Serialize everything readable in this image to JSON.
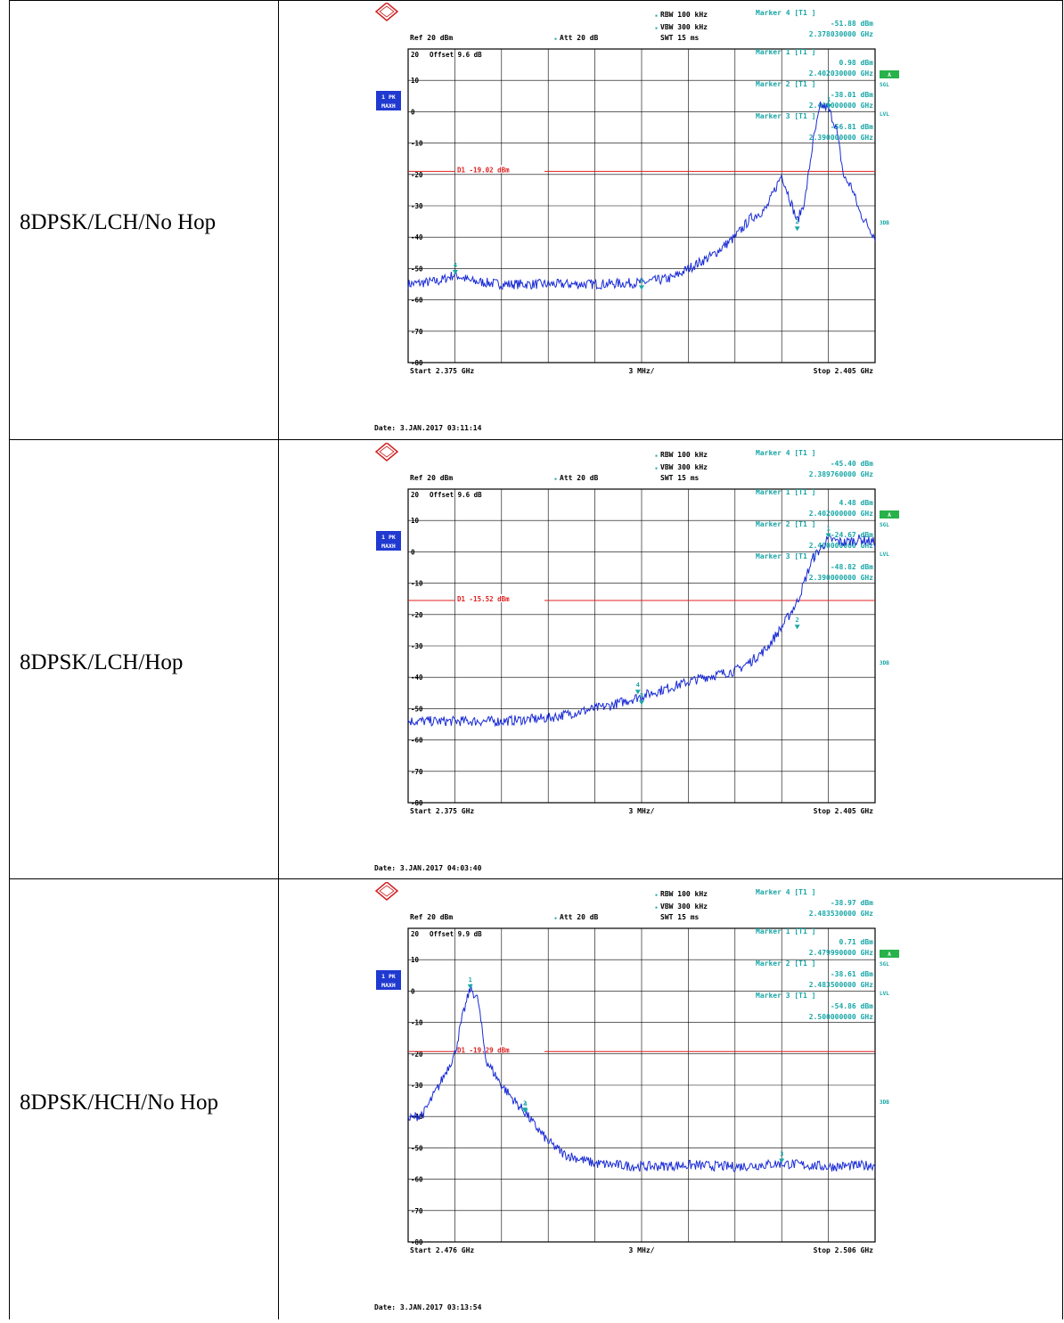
{
  "plots": [
    {
      "label": "8DPSK/LCH/No Hop",
      "rbw": "RBW 100 kHz",
      "vbw": "VBW 300 kHz",
      "swt": "SWT 15 ms",
      "ref": "Ref  20 dBm",
      "att": "Att  20 dB",
      "offset": "Offset  9.6 dB",
      "trace_box": "1 PK",
      "trace_mode": "MAXH",
      "d1": "D1 -19.02 dBm",
      "d1_value": -19.02,
      "start": "Start  2.375 GHz",
      "span": "3 MHz/",
      "stop": "Stop  2.405 GHz",
      "date": "Date: 3.JAN.2017  03:11:14",
      "marker_blocks": [
        {
          "title": "Marker 4 [T1 ]",
          "level": "-51.88 dBm",
          "freq": "2.378030000 GHz"
        },
        {
          "title": "Marker 1 [T1 ]",
          "level": "0.98 dBm",
          "freq": "2.402030000 GHz"
        },
        {
          "title": "Marker 2 [T1 ]",
          "level": "-38.01 dBm",
          "freq": "2.400000000 GHz"
        },
        {
          "title": "Marker 3 [T1 ]",
          "level": "-56.81 dBm",
          "freq": "2.390000000 GHz"
        }
      ]
    },
    {
      "label": "8DPSK/LCH/Hop",
      "rbw": "RBW 100 kHz",
      "vbw": "VBW 300 kHz",
      "swt": "SWT 15 ms",
      "ref": "Ref  20 dBm",
      "att": "Att  20 dB",
      "offset": "Offset  9.6 dB",
      "trace_box": "1 PK",
      "trace_mode": "MAXH",
      "d1": "D1 -15.52 dBm",
      "d1_value": -15.52,
      "start": "Start  2.375 GHz",
      "span": "3 MHz/",
      "stop": "Stop  2.405 GHz",
      "date": "Date: 3.JAN.2017  04:03:40",
      "marker_blocks": [
        {
          "title": "Marker 4 [T1 ]",
          "level": "-45.40 dBm",
          "freq": "2.389760000 GHz"
        },
        {
          "title": "Marker 1 [T1 ]",
          "level": "4.48 dBm",
          "freq": "2.402000000 GHz"
        },
        {
          "title": "Marker 2 [T1 ]",
          "level": "-24.67 dBm",
          "freq": "2.400000000 GHz"
        },
        {
          "title": "Marker 3 [T1 ]",
          "level": "-48.82 dBm",
          "freq": "2.390000000 GHz"
        }
      ]
    },
    {
      "label": "8DPSK/HCH/No Hop",
      "rbw": "RBW 100 kHz",
      "vbw": "VBW 300 kHz",
      "swt": "SWT 15 ms",
      "ref": "Ref  20 dBm",
      "att": "Att  20 dB",
      "offset": "Offset  9.9 dB",
      "trace_box": "1 PK",
      "trace_mode": "MAXH",
      "d1": "D1 -19.29 dBm",
      "d1_value": -19.29,
      "start": "Start  2.476 GHz",
      "span": "3 MHz/",
      "stop": "Stop  2.506 GHz",
      "date": "Date: 3.JAN.2017  03:13:54",
      "marker_blocks": [
        {
          "title": "Marker 4 [T1 ]",
          "level": "-38.97 dBm",
          "freq": "2.483530000 GHz"
        },
        {
          "title": "Marker 1 [T1 ]",
          "level": "0.71 dBm",
          "freq": "2.479990000 GHz"
        },
        {
          "title": "Marker 2 [T1 ]",
          "level": "-38.61 dBm",
          "freq": "2.483500000 GHz"
        },
        {
          "title": "Marker 3 [T1 ]",
          "level": "-54.86 dBm",
          "freq": "2.500000000 GHz"
        }
      ]
    }
  ],
  "side_labels": {
    "a": "A",
    "sgl": "SGL",
    "lvl": "LVL",
    "three_db": "3DB"
  },
  "y_ticks": [
    "20",
    "10",
    "0",
    "-10",
    "-20",
    "-30",
    "-40",
    "-50",
    "-60",
    "-70",
    "-80"
  ],
  "colors": {
    "trace": "#1a2cd6",
    "limit": "#e02020",
    "marker_text": "#19a6a6",
    "grid": "#000000",
    "badge": "#2039d0",
    "a_badge": "#27b24a"
  },
  "chart_data": [
    {
      "type": "line",
      "title": "8DPSK/LCH/No Hop",
      "xlabel": "",
      "ylabel": "",
      "x_unit": "GHz",
      "y_unit": "dBm",
      "xlim": [
        2.375,
        2.405
      ],
      "ylim": [
        -80,
        20
      ],
      "grid": true,
      "legend": "none",
      "limit_line": {
        "name": "D1",
        "value": -19.02
      },
      "series": [
        {
          "x": [
            2.375,
            2.377,
            2.378,
            2.379,
            2.381,
            2.384,
            2.387,
            2.39,
            2.392,
            2.393,
            2.3945,
            2.396,
            2.397,
            2.398,
            2.399,
            2.4,
            2.4005,
            2.401,
            2.4015,
            2.402,
            2.4025,
            2.403,
            2.4035,
            2.404,
            2.405
          ],
          "y": [
            -55,
            -54,
            -51.9,
            -54,
            -55,
            -55,
            -55,
            -54.5,
            -53,
            -50,
            -46,
            -40,
            -34,
            -31,
            -20,
            -35,
            -28,
            -10,
            2,
            1,
            -5,
            -21,
            -24,
            -32,
            -40
          ]
        }
      ],
      "markers": [
        {
          "n": 1,
          "x": 2.40203,
          "y": 0.98
        },
        {
          "n": 2,
          "x": 2.4,
          "y": -38.01
        },
        {
          "n": 3,
          "x": 2.39,
          "y": -56.81
        },
        {
          "n": 4,
          "x": 2.37803,
          "y": -51.88
        }
      ]
    },
    {
      "type": "line",
      "title": "8DPSK/LCH/Hop",
      "xlabel": "",
      "ylabel": "",
      "x_unit": "GHz",
      "y_unit": "dBm",
      "xlim": [
        2.375,
        2.405
      ],
      "ylim": [
        -80,
        20
      ],
      "grid": true,
      "legend": "none",
      "limit_line": {
        "name": "D1",
        "value": -15.52
      },
      "series": [
        {
          "x": [
            2.375,
            2.378,
            2.381,
            2.384,
            2.386,
            2.388,
            2.39,
            2.392,
            2.394,
            2.396,
            2.397,
            2.398,
            2.399,
            2.4,
            2.401,
            2.402,
            2.403,
            2.404,
            2.405
          ],
          "y": [
            -54,
            -54,
            -54,
            -53,
            -51,
            -49,
            -46,
            -43,
            -40,
            -38,
            -35,
            -31,
            -24,
            -16,
            -2,
            4,
            3,
            4,
            3
          ]
        }
      ],
      "markers": [
        {
          "n": 1,
          "x": 2.402,
          "y": 4.48
        },
        {
          "n": 2,
          "x": 2.4,
          "y": -24.67
        },
        {
          "n": 3,
          "x": 2.39,
          "y": -48.82
        },
        {
          "n": 4,
          "x": 2.38976,
          "y": -45.4
        }
      ]
    },
    {
      "type": "line",
      "title": "8DPSK/HCH/No Hop",
      "xlabel": "",
      "ylabel": "",
      "x_unit": "GHz",
      "y_unit": "dBm",
      "xlim": [
        2.476,
        2.506
      ],
      "ylim": [
        -80,
        20
      ],
      "grid": true,
      "legend": "none",
      "limit_line": {
        "name": "D1",
        "value": -19.29
      },
      "series": [
        {
          "x": [
            2.476,
            2.477,
            2.478,
            2.479,
            2.4795,
            2.48,
            2.4805,
            2.481,
            2.482,
            2.483,
            2.4835,
            2.484,
            2.485,
            2.486,
            2.488,
            2.491,
            2.494,
            2.497,
            2.5,
            2.503,
            2.506
          ],
          "y": [
            -41,
            -39,
            -30,
            -20,
            -8,
            1,
            -3,
            -22,
            -30,
            -36,
            -38.6,
            -42,
            -48,
            -52,
            -55,
            -56,
            -55.5,
            -56,
            -55,
            -56,
            -55.5
          ]
        }
      ],
      "markers": [
        {
          "n": 1,
          "x": 2.47999,
          "y": 0.71
        },
        {
          "n": 2,
          "x": 2.4835,
          "y": -38.61
        },
        {
          "n": 3,
          "x": 2.5,
          "y": -54.86
        },
        {
          "n": 4,
          "x": 2.48353,
          "y": -38.97
        }
      ]
    }
  ]
}
